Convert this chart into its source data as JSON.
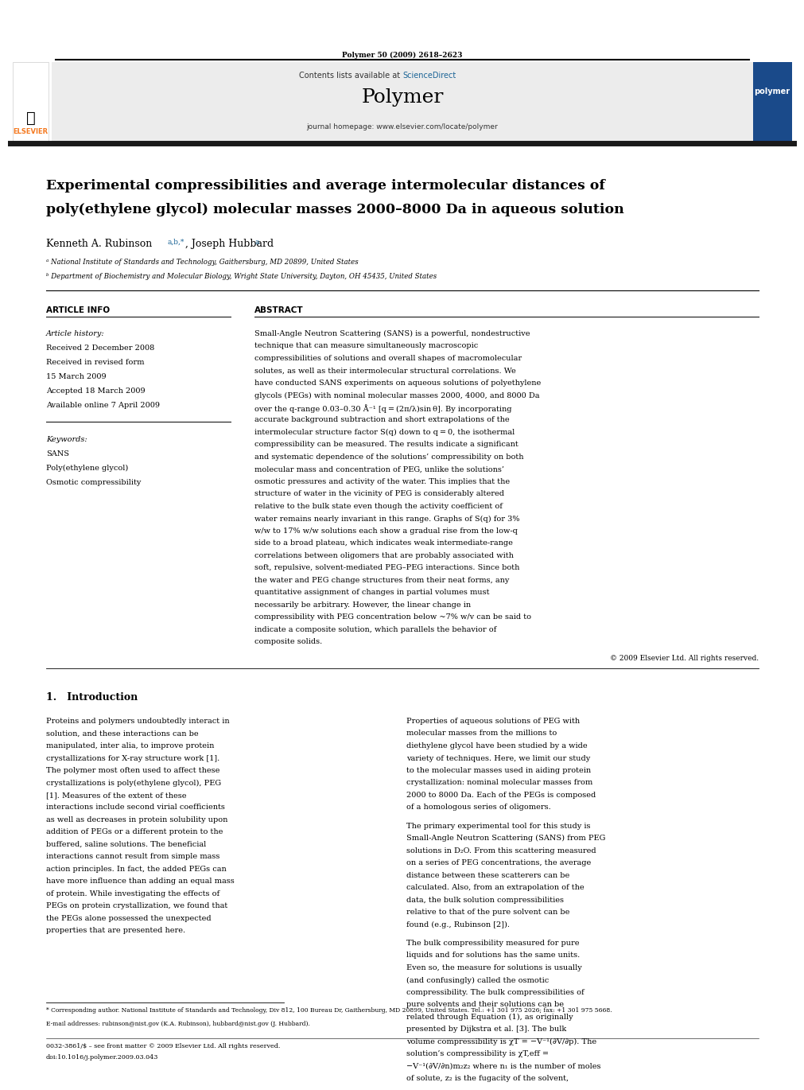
{
  "page_width": 9.92,
  "page_height": 13.23,
  "bg_color": "#ffffff",
  "journal_ref": "Polymer 50 (2009) 2618–2623",
  "header_bg": "#e8e8e8",
  "contents_text": "Contents lists available at ",
  "sciencedirect_text": "ScienceDirect",
  "sciencedirect_color": "#1a6496",
  "journal_name": "Polymer",
  "journal_homepage": "journal homepage: www.elsevier.com/locate/polymer",
  "title_line1": "Experimental compressibilities and average intermolecular distances of",
  "title_line2": "poly(ethylene glycol) molecular masses 2000–8000 Da in aqueous solution",
  "authors": "Kenneth A. Rubinson ",
  "authors_superscript": "a,b,*",
  "authors2": ", Joseph Hubbard ",
  "authors2_superscript": "a",
  "affil1": "ᵃ National Institute of Standards and Technology, Gaithersburg, MD 20899, United States",
  "affil2": "ᵇ Department of Biochemistry and Molecular Biology, Wright State University, Dayton, OH 45435, United States",
  "article_info_title": "ARTICLE INFO",
  "abstract_title": "ABSTRACT",
  "history_label": "Article history:",
  "received1": "Received 2 December 2008",
  "received2": "Received in revised form",
  "received2b": "15 March 2009",
  "accepted": "Accepted 18 March 2009",
  "available": "Available online 7 April 2009",
  "keywords_label": "Keywords:",
  "keyword1": "SANS",
  "keyword2": "Poly(ethylene glycol)",
  "keyword3": "Osmotic compressibility",
  "abstract_text": "Small-Angle Neutron Scattering (SANS) is a powerful, nondestructive technique that can measure simultaneously macroscopic compressibilities of solutions and overall shapes of macromolecular solutes, as well as their intermolecular structural correlations. We have conducted SANS experiments on aqueous solutions of polyethylene glycols (PEGs) with nominal molecular masses 2000, 4000, and 8000 Da over the q-range 0.03–0.30 Å⁻¹ [q = (2π/λ)sin θ]. By incorporating accurate background subtraction and short extrapolations of the intermolecular structure factor S(q) down to q = 0, the isothermal compressibility can be measured. The results indicate a significant and systematic dependence of the solutions’ compressibility on both molecular mass and concentration of PEG, unlike the solutions’ osmotic pressures and activity of the water. This implies that the structure of water in the vicinity of PEG is considerably altered relative to the bulk state even though the activity coefficient of water remains nearly invariant in this range. Graphs of S(q) for 3% w/w to 17% w/w solutions each show a gradual rise from the low-q side to a broad plateau, which indicates weak intermediate-range correlations between oligomers that are probably associated with soft, repulsive, solvent-mediated PEG–PEG interactions. Since both the water and PEG change structures from their neat forms, any quantitative assignment of changes in partial volumes must necessarily be arbitrary. However, the linear change in compressibility with PEG concentration below ~7% w/v can be said to indicate a composite solution, which parallels the behavior of composite solids.",
  "copyright": "© 2009 Elsevier Ltd. All rights reserved.",
  "section1_title": "1.   Introduction",
  "intro_col1": "Proteins and polymers undoubtedly interact in solution, and these interactions can be manipulated, inter alia, to improve protein crystallizations for X-ray structure work [1]. The polymer most often used to affect these crystallizations is poly(ethylene glycol), PEG [1]. Measures of the extent of these interactions include second virial coefficients as well as decreases in protein solubility upon addition of PEGs or a different protein to the buffered, saline solutions. The beneficial interactions cannot result from simple mass action principles. In fact, the added PEGs can have more influence than adding an equal mass of protein. While investigating the effects of PEGs on protein crystallization, we found that the PEGs alone possessed the unexpected properties that are presented here.",
  "intro_col2": "Properties of aqueous solutions of PEG with molecular masses from the millions to diethylene glycol have been studied by a wide variety of techniques. Here, we limit our study to the molecular masses used in aiding protein crystallization: nominal molecular masses from 2000 to 8000 Da. Each of the PEGs is composed of a homologous series of oligomers.\n\nThe primary experimental tool for this study is Small-Angle Neutron Scattering (SANS) from PEG solutions in D₂O. From this scattering measured on a series of PEG concentrations, the average distance between these scatterers can be calculated. Also, from an extrapolation of the data, the bulk solution compressibilities relative to that of the pure solvent can be found (e.g., Rubinson [2]).\n\nThe bulk compressibility measured for pure liquids and for solutions has the same units. Even so, the measure for solutions is usually (and confusingly) called the osmotic compressibility. The bulk compressibilities of pure solvents and their solutions can be related through Equation (1), as originally presented by Dijkstra et al. [3]. The bulk volume compressibility is χT = −V⁻¹(∂V/∂p). The solution’s compressibility is χT,eff = −V⁻¹(∂V/∂n)m₂z₂ where n₁ is the number of moles of solute, z₂ is the fugacity of the solvent,",
  "footnote_star": "* Corresponding author. National Institute of Standards and Technology, Div 812, 100 Bureau Dr, Gaithersburg, MD 20899, United States. Tel.: +1 301 975 2026; fax: +1 301 975 5668.",
  "footnote_email": "E-mail addresses: rubinson@nist.gov (K.A. Rubinson), hubbard@nist.gov (J. Hubbard).",
  "bottom_text1": "0032-3861/$ – see front matter © 2009 Elsevier Ltd. All rights reserved.",
  "bottom_text2": "doi:10.1016/j.polymer.2009.03.043",
  "elsevier_orange": "#f47920",
  "black": "#000000",
  "dark_gray": "#333333",
  "light_gray": "#cccccc",
  "header_bar_color": "#1a1a1a"
}
